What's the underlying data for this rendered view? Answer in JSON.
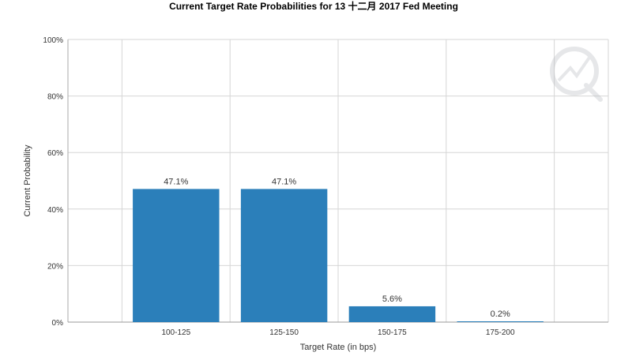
{
  "chart_data": {
    "type": "bar",
    "title": "Current Target Rate Probabilities for 13 十二月 2017 Fed Meeting",
    "xlabel": "Target Rate (in bps)",
    "ylabel": "Current Probability",
    "categories": [
      "100-125",
      "125-150",
      "150-175",
      "175-200"
    ],
    "values": [
      47.1,
      47.1,
      5.6,
      0.2
    ],
    "value_labels": [
      "47.1%",
      "47.1%",
      "5.6%",
      "0.2%"
    ],
    "ylim": [
      0,
      100
    ],
    "yticks": [
      0,
      20,
      40,
      60,
      80,
      100
    ],
    "ytick_labels": [
      "0%",
      "20%",
      "40%",
      "60%",
      "80%",
      "100%"
    ],
    "grid": true,
    "legend": "none",
    "bar_color": "#2b7fba",
    "grid_color": "#d6d6d6"
  }
}
